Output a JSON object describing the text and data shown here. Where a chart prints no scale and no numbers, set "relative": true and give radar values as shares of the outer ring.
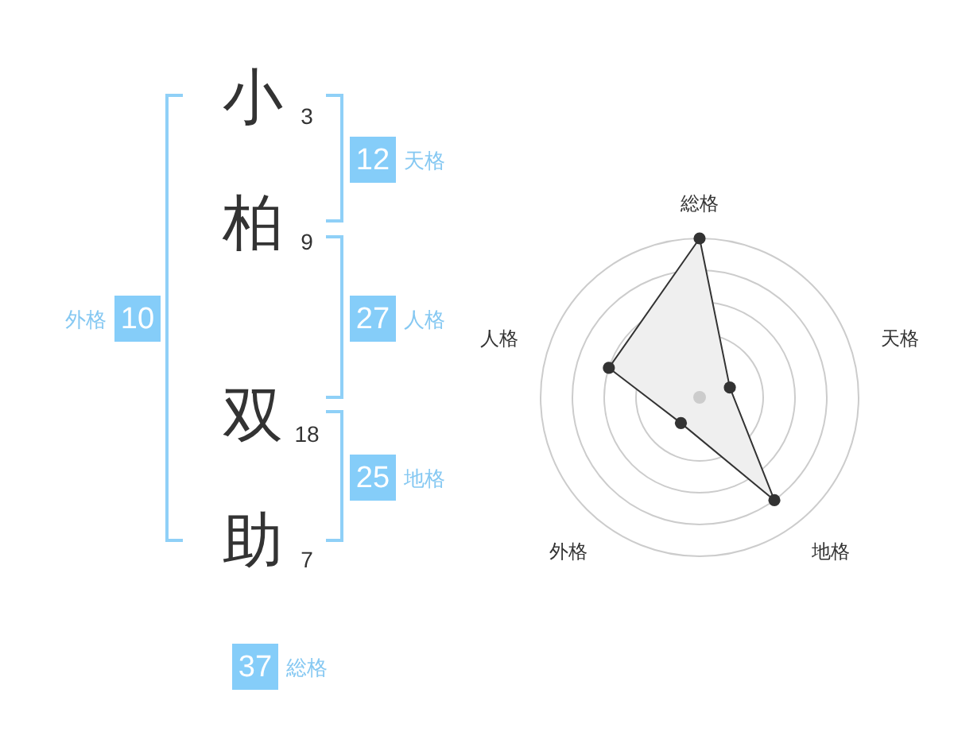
{
  "chart_data": [
    {
      "type": "other",
      "categories": [
        "小",
        "柏",
        "双",
        "助"
      ],
      "values": [
        3,
        9,
        18,
        7
      ],
      "data_labels": true
    },
    {
      "type": "other",
      "categories": [
        "天格",
        "人格",
        "地格",
        "外格",
        "総格"
      ],
      "values": [
        12,
        27,
        25,
        10,
        37
      ],
      "data_labels": true,
      "color": "#85cdf9"
    },
    {
      "type": "radar",
      "categories": [
        "総格",
        "天格",
        "地格",
        "外格",
        "人格"
      ],
      "series": [
        {
          "color": "#333333",
          "values": [
            1,
            0.2,
            0.8,
            0.2,
            0.6
          ]
        }
      ],
      "relative": true,
      "grid": true,
      "marker": "circle"
    }
  ]
}
